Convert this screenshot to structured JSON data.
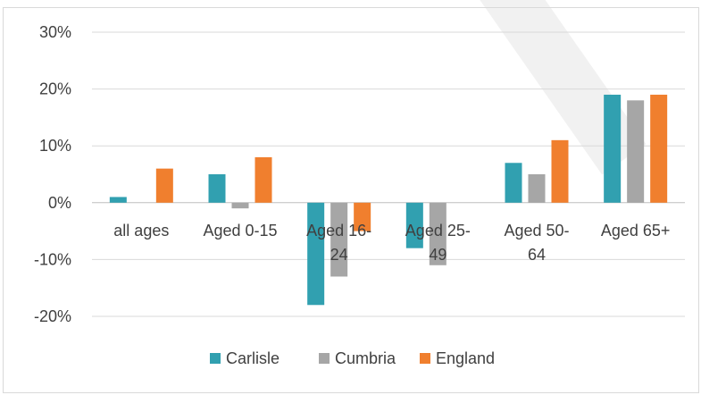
{
  "chart_data": {
    "type": "bar",
    "title": "",
    "categories": [
      [
        "all ages"
      ],
      [
        "Aged 0-15"
      ],
      [
        "Aged 16-",
        "24"
      ],
      [
        "Aged 25-",
        "49"
      ],
      [
        "Aged 50-",
        "64"
      ],
      [
        "Aged 65+"
      ]
    ],
    "series": [
      {
        "name": "Carlisle",
        "color": "#31a0b0",
        "values": [
          1,
          5,
          -18,
          -8,
          7,
          19
        ]
      },
      {
        "name": "Cumbria",
        "color": "#a6a6a6",
        "values": [
          0,
          -1,
          -13,
          -11,
          5,
          18
        ]
      },
      {
        "name": "England",
        "color": "#f07f2e",
        "values": [
          6,
          8,
          -5,
          0,
          11,
          19
        ]
      }
    ],
    "yticks": [
      "30%",
      "20%",
      "10%",
      "0%",
      "-10%",
      "-20%"
    ],
    "ylim": [
      -20,
      30
    ],
    "grid": true,
    "legend_position": "bottom"
  }
}
